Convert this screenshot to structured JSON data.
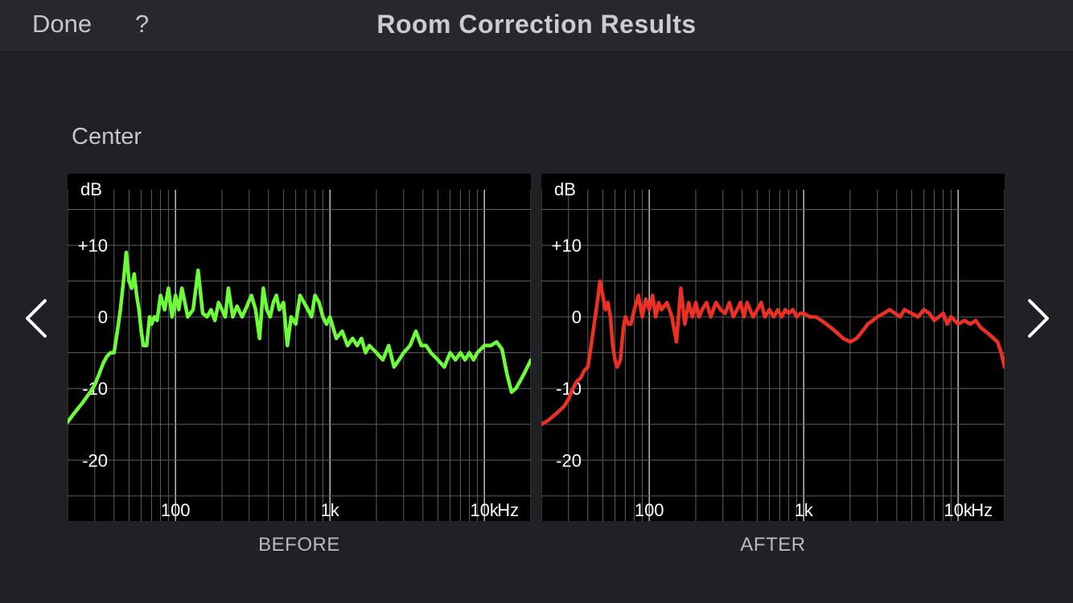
{
  "header": {
    "done_label": "Done",
    "help_label": "?",
    "title": "Room Correction Results"
  },
  "channel_name": "Center",
  "nav": {
    "prev_icon": "chevron-left-icon",
    "next_icon": "chevron-right-icon"
  },
  "chart_data": [
    {
      "type": "line",
      "caption": "BEFORE",
      "color": "#6dfc3a",
      "y_unit": "dB",
      "x_unit": "Hz",
      "y_ticks": [
        "+10",
        "0",
        "-10",
        "-20"
      ],
      "x_ticks": [
        "100",
        "1k",
        "10k"
      ],
      "xlim": [
        20,
        20000
      ],
      "ylim": [
        -28.5,
        20
      ],
      "x_scale": "log",
      "grid": true,
      "series": [
        {
          "x": [
            20,
            22,
            25,
            28,
            30,
            32,
            34,
            36,
            38,
            40,
            42,
            44,
            46,
            48,
            50,
            52,
            54,
            56,
            58,
            60,
            62,
            65,
            68,
            70,
            73,
            76,
            80,
            85,
            90,
            95,
            100,
            105,
            110,
            115,
            120,
            130,
            140,
            150,
            160,
            170,
            180,
            190,
            200,
            210,
            220,
            235,
            250,
            270,
            290,
            310,
            330,
            350,
            370,
            390,
            410,
            430,
            450,
            470,
            500,
            530,
            560,
            600,
            640,
            680,
            720,
            760,
            800,
            850,
            900,
            950,
            1000,
            1100,
            1200,
            1300,
            1400,
            1500,
            1600,
            1700,
            1800,
            2000,
            2200,
            2400,
            2600,
            2800,
            3000,
            3300,
            3600,
            3900,
            4200,
            4500,
            5000,
            5500,
            6000,
            6500,
            7000,
            7500,
            8000,
            8500,
            9000,
            10000,
            11000,
            12000,
            13000,
            14000,
            15000,
            16000,
            17000,
            18000,
            19000,
            20000
          ],
          "values": [
            -14.7,
            -13.5,
            -12.0,
            -10.5,
            -9.5,
            -8,
            -6.5,
            -5.5,
            -5,
            -5,
            -2,
            1,
            5,
            9,
            5,
            4,
            6,
            3,
            1,
            -2,
            -4,
            -4,
            0,
            -1,
            0,
            -0.5,
            3,
            1,
            4,
            0,
            3,
            1,
            4,
            2,
            0,
            1,
            6.5,
            0.5,
            0,
            1,
            -0.5,
            2,
            1,
            0,
            4,
            0,
            1.5,
            0,
            1.5,
            3,
            1,
            -3,
            4,
            1,
            0,
            2,
            3,
            1,
            2,
            -4,
            0,
            -1,
            3,
            2,
            1,
            0,
            3,
            2,
            0,
            -1,
            0,
            -3,
            -2,
            -4,
            -3,
            -4,
            -3,
            -5,
            -4,
            -5,
            -6,
            -4,
            -7,
            -6,
            -5,
            -4,
            -2,
            -4,
            -4,
            -5,
            -6,
            -7,
            -5,
            -6,
            -5,
            -6,
            -5,
            -6,
            -5,
            -4,
            -4,
            -3.5,
            -4.5,
            -8,
            -10.5,
            -10,
            -9,
            -8,
            -7,
            -6
          ]
        }
      ]
    },
    {
      "type": "line",
      "caption": "AFTER",
      "color": "#ec3124",
      "y_unit": "dB",
      "x_unit": "Hz",
      "y_ticks": [
        "+10",
        "0",
        "-10",
        "-20"
      ],
      "x_ticks": [
        "100",
        "1k",
        "10k"
      ],
      "xlim": [
        20,
        20000
      ],
      "ylim": [
        -28.5,
        20
      ],
      "x_scale": "log",
      "grid": true,
      "series": [
        {
          "x": [
            20,
            22,
            25,
            28,
            30,
            32,
            34,
            36,
            38,
            40,
            42,
            44,
            46,
            48,
            50,
            52,
            54,
            56,
            58,
            60,
            62,
            65,
            68,
            70,
            73,
            76,
            80,
            85,
            90,
            95,
            100,
            105,
            110,
            115,
            120,
            130,
            140,
            150,
            160,
            170,
            180,
            190,
            200,
            210,
            220,
            235,
            250,
            270,
            290,
            310,
            330,
            350,
            370,
            390,
            410,
            430,
            450,
            470,
            500,
            530,
            560,
            600,
            640,
            680,
            720,
            760,
            800,
            850,
            900,
            950,
            1000,
            1100,
            1200,
            1300,
            1400,
            1500,
            1600,
            1700,
            1800,
            2000,
            2200,
            2400,
            2600,
            2800,
            3000,
            3300,
            3600,
            3900,
            4200,
            4500,
            5000,
            5500,
            6000,
            6500,
            7000,
            7500,
            8000,
            8500,
            9000,
            10000,
            11000,
            12000,
            13000,
            14000,
            15000,
            16000,
            17000,
            18000,
            19000,
            20000
          ],
          "values": [
            -15,
            -14.5,
            -13.5,
            -12.5,
            -11.5,
            -10,
            -9,
            -8.5,
            -7.5,
            -7,
            -4,
            -1,
            2,
            5,
            3,
            1,
            2,
            0,
            -4,
            -6,
            -7,
            -6,
            -1.5,
            0,
            -1,
            -1,
            1,
            3,
            0,
            2.5,
            1,
            3,
            0,
            2,
            1,
            2,
            0,
            -3.5,
            4,
            -1,
            2,
            0,
            2,
            0,
            1,
            2,
            0,
            2,
            1,
            0.5,
            2,
            0,
            1,
            2,
            0,
            2,
            1,
            0,
            1,
            2,
            0,
            1,
            0,
            1,
            0,
            1,
            0.5,
            1,
            0,
            0.5,
            0.5,
            0,
            0,
            -0.5,
            -1,
            -1.5,
            -2,
            -2.5,
            -3,
            -3.5,
            -3,
            -2,
            -1,
            -0.5,
            0,
            0.5,
            1,
            0.5,
            0,
            1,
            0.5,
            0,
            1,
            0.5,
            -0.5,
            0,
            0.5,
            -1,
            0,
            -1,
            -0.5,
            -1,
            -0.5,
            -1.5,
            -2,
            -2.5,
            -3,
            -3.5,
            -5,
            -7
          ]
        }
      ]
    }
  ]
}
